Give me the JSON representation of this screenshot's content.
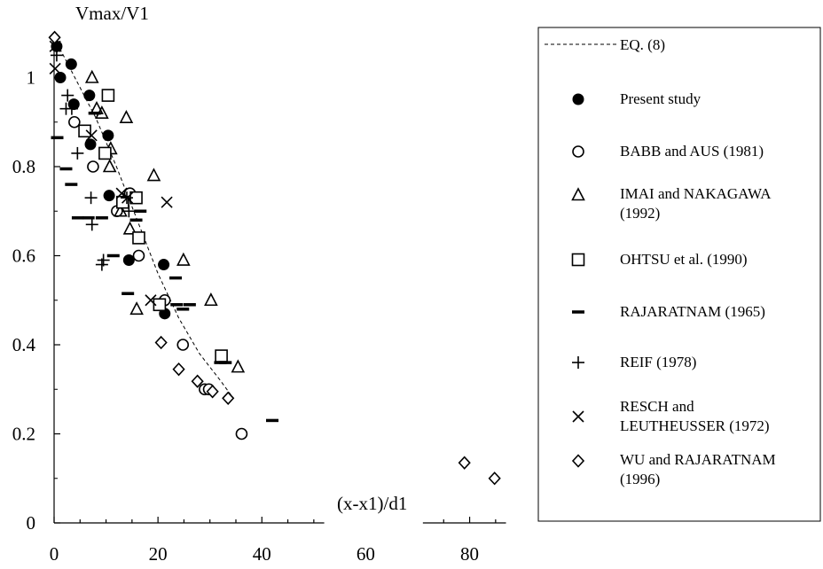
{
  "chart_data": {
    "type": "scatter",
    "xlabel": "(x-x1)/d1",
    "ylabel": "Vmax/V1",
    "xlim": [
      0,
      87
    ],
    "ylim": [
      0,
      1.1
    ],
    "xticks": [
      0,
      20,
      40,
      60,
      80
    ],
    "yticks": [
      0,
      0.2,
      0.4,
      0.6,
      0.8,
      1
    ],
    "ytick_labels": [
      "0",
      "0.2",
      "0.4",
      "0.6",
      "0.8",
      "1"
    ],
    "grid": false,
    "axis_break": [
      52,
      71
    ],
    "legend_position": "right",
    "line": {
      "name": "EQ. (8)",
      "x": [
        0,
        4,
        8,
        12,
        16,
        20,
        24,
        28,
        32,
        34.5
      ],
      "y": [
        1.09,
        1.0,
        0.91,
        0.8,
        0.68,
        0.56,
        0.46,
        0.38,
        0.32,
        0.28
      ]
    },
    "series": [
      {
        "name": "Present study",
        "marker": "filled-circle",
        "x": [
          0.5,
          1.2,
          3.3,
          3.8,
          6.8,
          7.0,
          10.4,
          10.6,
          14.4,
          21.1,
          21.3
        ],
        "y": [
          1.07,
          1.0,
          1.03,
          0.94,
          0.96,
          0.85,
          0.87,
          0.735,
          0.59,
          0.58,
          0.47
        ]
      },
      {
        "name": "BABB and AUS (1981)",
        "marker": "open-circle",
        "x": [
          3.9,
          7.5,
          12.1,
          14.6,
          16.3,
          21.3,
          24.8,
          29.0,
          29.8,
          36.1
        ],
        "y": [
          0.9,
          0.8,
          0.7,
          0.74,
          0.6,
          0.5,
          0.4,
          0.3,
          0.3,
          0.2
        ]
      },
      {
        "name": "IMAI and NAKAGAWA (1992)",
        "marker": "open-triangle",
        "x": [
          7.3,
          8.2,
          9.2,
          10.7,
          10.9,
          12.8,
          13.9,
          14.6,
          15.9,
          19.2,
          24.9,
          30.2,
          35.4
        ],
        "y": [
          1.0,
          0.93,
          0.92,
          0.8,
          0.84,
          0.7,
          0.91,
          0.66,
          0.48,
          0.78,
          0.59,
          0.5,
          0.35
        ]
      },
      {
        "name": "OHTSU et al. (1990)",
        "marker": "open-square",
        "x": [
          5.9,
          9.8,
          10.4,
          13.2,
          15.8,
          16.3,
          20.3,
          32.2
        ],
        "y": [
          0.88,
          0.83,
          0.96,
          0.72,
          0.73,
          0.64,
          0.49,
          0.375
        ]
      },
      {
        "name": "RAJARATNAM (1965)",
        "marker": "dash",
        "x": [
          0.6,
          2.3,
          3.3,
          4.6,
          6.6,
          7.8,
          9.2,
          11.4,
          14.2,
          15.8,
          16.6,
          23.4,
          23.6,
          24.8,
          26.1,
          32.0,
          33.0,
          42.0
        ],
        "y": [
          0.865,
          0.795,
          0.76,
          0.685,
          0.685,
          0.92,
          0.685,
          0.6,
          0.515,
          0.68,
          0.7,
          0.55,
          0.49,
          0.48,
          0.49,
          0.36,
          0.36,
          0.23
        ]
      },
      {
        "name": "REIF (1978)",
        "marker": "plus",
        "x": [
          0.5,
          2.6,
          2.3,
          3.4,
          4.5,
          7.1,
          7.3,
          9.2,
          9.5,
          14.0,
          14.4
        ],
        "y": [
          1.05,
          0.96,
          0.93,
          0.93,
          0.83,
          0.73,
          0.67,
          0.58,
          0.59,
          0.73,
          0.7
        ]
      },
      {
        "name": "RESCH and LEUTHEUSSER (1972)",
        "marker": "cross",
        "x": [
          0.2,
          0.2,
          7.2,
          13.0,
          14.1,
          18.6,
          21.7
        ],
        "y": [
          1.07,
          1.02,
          0.87,
          0.74,
          0.73,
          0.5,
          0.72
        ]
      },
      {
        "name": "WU and RAJARATNAM (1996)",
        "marker": "open-diamond",
        "x": [
          0.1,
          20.6,
          24.0,
          27.6,
          30.5,
          33.5,
          79.0,
          84.8
        ],
        "y": [
          1.09,
          0.405,
          0.345,
          0.318,
          0.295,
          0.28,
          0.135,
          0.1
        ]
      }
    ]
  }
}
